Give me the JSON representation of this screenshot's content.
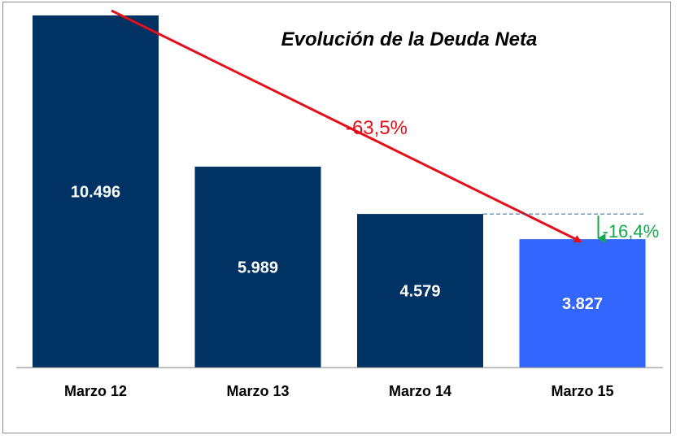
{
  "chart_data": {
    "type": "bar",
    "title": "Evolución de la Deuda Neta",
    "categories": [
      "Marzo 12",
      "Marzo 13",
      "Marzo 14",
      "Marzo 15"
    ],
    "values": [
      10496,
      5989,
      4579,
      3827
    ],
    "value_labels": [
      "10.496",
      "5.989",
      "4.579",
      "3.827"
    ],
    "ylim": [
      0,
      10496
    ],
    "xlabel": "",
    "ylabel": "",
    "grid": false,
    "legend": "none",
    "highlight_index": 3,
    "annotations": [
      {
        "text": "-63,5%",
        "from_category": "Marzo 12",
        "to_category": "Marzo 15"
      },
      {
        "text": "-16,4%",
        "from_category": "Marzo 14",
        "to_category": "Marzo 15"
      }
    ]
  },
  "colors": {
    "bar": "#003263",
    "bar_highlight": "#3366ff",
    "arrow_total": "#e3101a",
    "arrow_change": "#14a84a",
    "reference_line": "#2f5f8f",
    "axis": "#808080"
  }
}
